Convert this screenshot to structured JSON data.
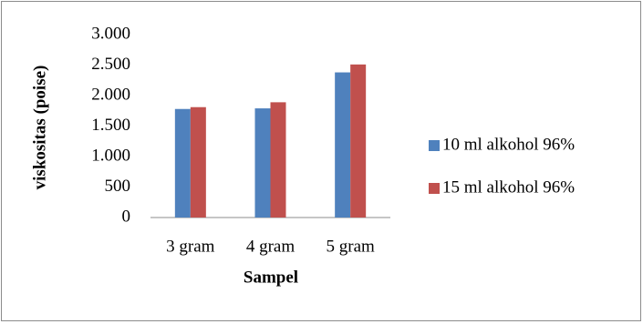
{
  "chart_data": {
    "type": "bar",
    "xlabel": "Sampel",
    "ylabel": "viskositas (poise)",
    "categories": [
      "3 gram",
      "4 gram",
      "5 gram"
    ],
    "series": [
      {
        "name": "10 ml alkohol 96%",
        "color": "#4f81bd",
        "values": [
          1780,
          1790,
          2380
        ]
      },
      {
        "name": "15 ml alkohol 96%",
        "color": "#c0504d",
        "values": [
          1810,
          1890,
          2510
        ]
      }
    ],
    "ylim": [
      0,
      3000
    ],
    "yticks": [
      0,
      500,
      {
        "value": 1000,
        "label": "1.000"
      },
      {
        "value": 1500,
        "label": "1.500"
      },
      {
        "value": 2000,
        "label": "2.000"
      },
      {
        "value": 2500,
        "label": "2.500"
      },
      {
        "value": 3000,
        "label": "3.000"
      }
    ],
    "grid": false,
    "legend": "right"
  }
}
